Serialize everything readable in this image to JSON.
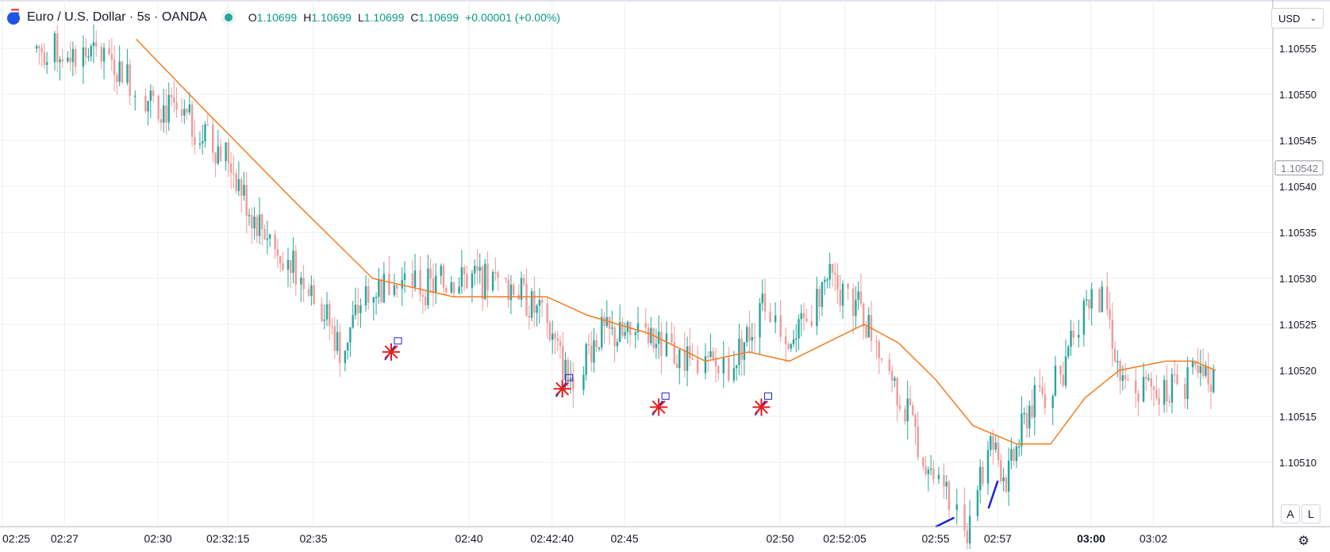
{
  "header": {
    "symbol": "Euro / U.S. Dollar · 5s · OANDA",
    "ohlc": {
      "open_label": "O",
      "open": "1.10699",
      "high_label": "H",
      "high": "1.10699",
      "low_label": "L",
      "low": "1.10699",
      "close_label": "C",
      "close": "1.10699",
      "change": "+0.00001 (+0.00%)"
    }
  },
  "currency_selector": {
    "value": "USD"
  },
  "buttons": {
    "auto": "A",
    "log": "L"
  },
  "colors": {
    "up": "#26a69a",
    "down": "#ef9a9a",
    "ma_line": "#f57c1f",
    "grid": "#e8f1f1",
    "axis_text": "#131722",
    "marker_red": "#e51e1e",
    "marker_blue": "#2222cc"
  },
  "chart_data": {
    "type": "candlestick",
    "title": "",
    "xlabel": "",
    "ylabel": "",
    "ylim": [
      1.10502,
      1.10558
    ],
    "y_ticks": [
      "1.10510",
      "1.10515",
      "1.10520",
      "1.10525",
      "1.10530",
      "1.10535",
      "1.10540",
      "1.10545",
      "1.10550",
      "1.10555"
    ],
    "x_ticks": [
      {
        "t": 0.0,
        "label": "02:25"
      },
      {
        "t": 2.0,
        "label": "02:27"
      },
      {
        "t": 5.0,
        "label": "02:30"
      },
      {
        "t": 7.25,
        "label": "02:32:15"
      },
      {
        "t": 10.0,
        "label": "02:35"
      },
      {
        "t": 15.0,
        "label": "02:40"
      },
      {
        "t": 17.67,
        "label": "02:42:40"
      },
      {
        "t": 20.0,
        "label": "02:45"
      },
      {
        "t": 25.0,
        "label": "02:50"
      },
      {
        "t": 27.08,
        "label": "02:52:05"
      },
      {
        "t": 30.0,
        "label": "02:55"
      },
      {
        "t": 32.0,
        "label": "02:57"
      },
      {
        "t": 35.0,
        "label": "03:00",
        "bold": true
      },
      {
        "t": 37.0,
        "label": "03:02"
      }
    ],
    "current_price_label": "1.10542",
    "current_price": 1.10542,
    "price_points": [
      [
        1.1,
        1.10555
      ],
      [
        3.5,
        1.10554
      ],
      [
        4.5,
        1.1055
      ],
      [
        6.0,
        1.10547
      ],
      [
        7.3,
        1.10543
      ],
      [
        8.0,
        1.10537
      ],
      [
        9.0,
        1.10533
      ],
      [
        10.0,
        1.10529
      ],
      [
        10.9,
        1.10522
      ],
      [
        11.7,
        1.10529
      ],
      [
        13.5,
        1.10529
      ],
      [
        15.0,
        1.1053
      ],
      [
        16.5,
        1.10529
      ],
      [
        17.5,
        1.10525
      ],
      [
        18.2,
        1.10519
      ],
      [
        19.2,
        1.10524
      ],
      [
        21.0,
        1.10523
      ],
      [
        22.0,
        1.10521
      ],
      [
        23.3,
        1.1052
      ],
      [
        24.5,
        1.10527
      ],
      [
        25.5,
        1.10523
      ],
      [
        26.5,
        1.1053
      ],
      [
        27.5,
        1.10527
      ],
      [
        28.5,
        1.1052
      ],
      [
        29.5,
        1.10512
      ],
      [
        30.5,
        1.10505
      ],
      [
        31.0,
        1.10503
      ],
      [
        31.8,
        1.10512
      ],
      [
        32.3,
        1.10508
      ],
      [
        33.0,
        1.10516
      ],
      [
        34.0,
        1.10519
      ],
      [
        34.8,
        1.10528
      ],
      [
        35.5,
        1.10527
      ],
      [
        36.0,
        1.10518
      ],
      [
        37.0,
        1.10518
      ],
      [
        38.3,
        1.10519
      ],
      [
        39.0,
        1.10519
      ]
    ],
    "moving_average": {
      "color": "#f57c1f",
      "points": [
        [
          4.3,
          1.10556
        ],
        [
          6.3,
          1.10549
        ],
        [
          9.5,
          1.10538
        ],
        [
          11.9,
          1.1053
        ],
        [
          14.5,
          1.10528
        ],
        [
          15.8,
          1.10528
        ],
        [
          17.5,
          1.10528
        ],
        [
          18.8,
          1.10526
        ],
        [
          20.8,
          1.10524
        ],
        [
          22.6,
          1.10521
        ],
        [
          24.0,
          1.10522
        ],
        [
          25.3,
          1.10521
        ],
        [
          26.5,
          1.10523
        ],
        [
          27.7,
          1.10525
        ],
        [
          28.8,
          1.10523
        ],
        [
          30.0,
          1.10519
        ],
        [
          31.2,
          1.10514
        ],
        [
          32.6,
          1.10512
        ],
        [
          33.7,
          1.10512
        ],
        [
          34.8,
          1.10517
        ],
        [
          35.9,
          1.1052
        ],
        [
          37.4,
          1.10521
        ],
        [
          38.3,
          1.10521
        ],
        [
          39.0,
          1.1052
        ]
      ]
    },
    "annotations": [
      {
        "kind": "star",
        "t": 12.5,
        "price": 1.10522
      },
      {
        "kind": "star",
        "t": 18.0,
        "price": 1.10518
      },
      {
        "kind": "star",
        "t": 21.1,
        "price": 1.10516
      },
      {
        "kind": "star",
        "t": 24.4,
        "price": 1.10516
      },
      {
        "kind": "stroke",
        "t1": 30.0,
        "p1": 1.10503,
        "t2": 30.6,
        "p2": 1.10504
      },
      {
        "kind": "stroke",
        "t1": 31.7,
        "p1": 1.10505,
        "t2": 32.0,
        "p2": 1.10508
      }
    ],
    "grid": true
  }
}
